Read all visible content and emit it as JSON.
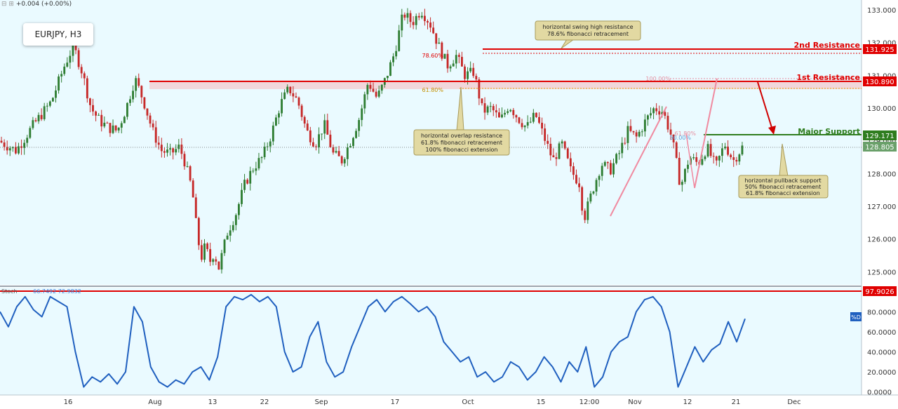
{
  "header": {
    "change_text": "+0.004 (+0.00%)",
    "symbol": "EURJPY, H3"
  },
  "colors": {
    "background": "#eafaff",
    "up_candle": "#2e7d32",
    "down_candle": "#c62828",
    "resistance": "#e00000",
    "support": "#2f7d1e",
    "stoch_line": "#1f5fbf",
    "annotation_bg": "#e2d9a2"
  },
  "chart_data": [
    {
      "type": "candlestick",
      "title": "EURJPY, H3",
      "x_tick_labels": [
        "16",
        "Aug",
        "13",
        "22",
        "Sep",
        "17",
        "Oct",
        "15",
        "12:00",
        "Nov",
        "12",
        "21",
        "Dec"
      ],
      "y_ticks": [
        125.0,
        126.0,
        127.0,
        128.0,
        129.0,
        130.0,
        131.0,
        132.0,
        133.0
      ],
      "ylim": [
        124.6,
        133.3
      ],
      "price_path": [
        [
          0,
          129.0
        ],
        [
          4,
          128.7
        ],
        [
          8,
          129.5
        ],
        [
          12,
          130.2
        ],
        [
          15,
          131.3
        ],
        [
          17,
          131.9
        ],
        [
          19,
          131.1
        ],
        [
          21,
          130.0
        ],
        [
          23,
          129.6
        ],
        [
          25,
          129.4
        ],
        [
          27,
          129.3
        ],
        [
          29,
          130.0
        ],
        [
          31,
          130.9
        ],
        [
          33,
          130.2
        ],
        [
          35,
          129.3
        ],
        [
          37,
          128.7
        ],
        [
          39,
          128.6
        ],
        [
          41,
          128.8
        ],
        [
          42,
          128.5
        ],
        [
          44,
          127.5
        ],
        [
          45,
          126.3
        ],
        [
          46,
          125.4
        ],
        [
          47,
          125.8
        ],
        [
          48,
          125.3
        ],
        [
          49,
          125.6
        ],
        [
          50,
          125.1
        ],
        [
          52,
          126.2
        ],
        [
          54,
          126.8
        ],
        [
          56,
          127.7
        ],
        [
          58,
          128.2
        ],
        [
          60,
          128.5
        ],
        [
          62,
          129.2
        ],
        [
          64,
          130.1
        ],
        [
          66,
          130.6
        ],
        [
          68,
          130.2
        ],
        [
          70,
          129.3
        ],
        [
          72,
          128.9
        ],
        [
          74,
          129.5
        ],
        [
          76,
          128.6
        ],
        [
          78,
          128.4
        ],
        [
          80,
          129.0
        ],
        [
          82,
          129.7
        ],
        [
          84,
          130.8
        ],
        [
          86,
          130.3
        ],
        [
          88,
          130.9
        ],
        [
          90,
          131.7
        ],
        [
          92,
          132.9
        ],
        [
          94,
          132.6
        ],
        [
          96,
          133.0
        ],
        [
          98,
          132.6
        ],
        [
          100,
          131.9
        ],
        [
          102,
          131.3
        ],
        [
          104,
          131.6
        ],
        [
          106,
          131.0
        ],
        [
          108,
          131.1
        ],
        [
          110,
          129.9
        ],
        [
          112,
          130.0
        ],
        [
          114,
          129.6
        ],
        [
          116,
          130.1
        ],
        [
          118,
          129.7
        ],
        [
          120,
          129.4
        ],
        [
          122,
          129.8
        ],
        [
          124,
          129.1
        ],
        [
          126,
          128.4
        ],
        [
          128,
          128.9
        ],
        [
          130,
          128.1
        ],
        [
          132,
          127.7
        ],
        [
          133,
          126.6
        ],
        [
          135,
          127.5
        ],
        [
          137,
          128.3
        ],
        [
          139,
          128.1
        ],
        [
          141,
          128.6
        ],
        [
          143,
          129.3
        ],
        [
          145,
          129.1
        ],
        [
          147,
          129.6
        ],
        [
          149,
          130.0
        ],
        [
          151,
          129.9
        ],
        [
          153,
          129.1
        ],
        [
          155,
          127.6
        ],
        [
          157,
          128.5
        ],
        [
          159,
          128.3
        ],
        [
          161,
          128.8
        ],
        [
          163,
          128.2
        ],
        [
          165,
          128.9
        ],
        [
          167,
          128.4
        ],
        [
          169,
          128.8
        ]
      ],
      "levels": [
        {
          "name": "2nd Resistance",
          "value": 131.925
        },
        {
          "name": "1st Resistance",
          "value": 130.89
        },
        {
          "name": "Major Support",
          "value": 129.171
        }
      ],
      "last_price": 128.805,
      "fib_labels": [
        "78.60%",
        "61.80%",
        "100.00%",
        "61.80%",
        "50.00%"
      ],
      "annotations": [
        [
          "horizontal swing high resistance",
          "78.6% fibonacci retracement"
        ],
        [
          "horizontal overlap resistance",
          "61.8% fibonacci retracement",
          "100% fibonacci extension"
        ],
        [
          "horizontal pullback support",
          "50% fibonacci retracement",
          "61.8% fibonacci extension"
        ]
      ]
    },
    {
      "type": "line",
      "title": "Stoch",
      "legend_values": "66.7492  72.9832",
      "series_label": "%D",
      "y_ticks": [
        0.0,
        20.0,
        40.0,
        60.0,
        80.0
      ],
      "ylim": [
        -3,
        104
      ],
      "level": 97.9026,
      "values": [
        80,
        65,
        85,
        95,
        82,
        75,
        95,
        90,
        85,
        40,
        5,
        15,
        10,
        18,
        8,
        20,
        85,
        70,
        25,
        10,
        5,
        12,
        8,
        20,
        25,
        12,
        35,
        85,
        95,
        92,
        97,
        90,
        95,
        85,
        40,
        20,
        25,
        55,
        70,
        30,
        15,
        20,
        45,
        65,
        85,
        92,
        80,
        90,
        95,
        88,
        80,
        85,
        75,
        50,
        40,
        30,
        35,
        15,
        20,
        10,
        15,
        30,
        25,
        12,
        20,
        35,
        25,
        10,
        30,
        20,
        45,
        5,
        15,
        40,
        50,
        55,
        80,
        92,
        95,
        85,
        60,
        5,
        25,
        45,
        30,
        42,
        48,
        70,
        50,
        73
      ]
    }
  ]
}
